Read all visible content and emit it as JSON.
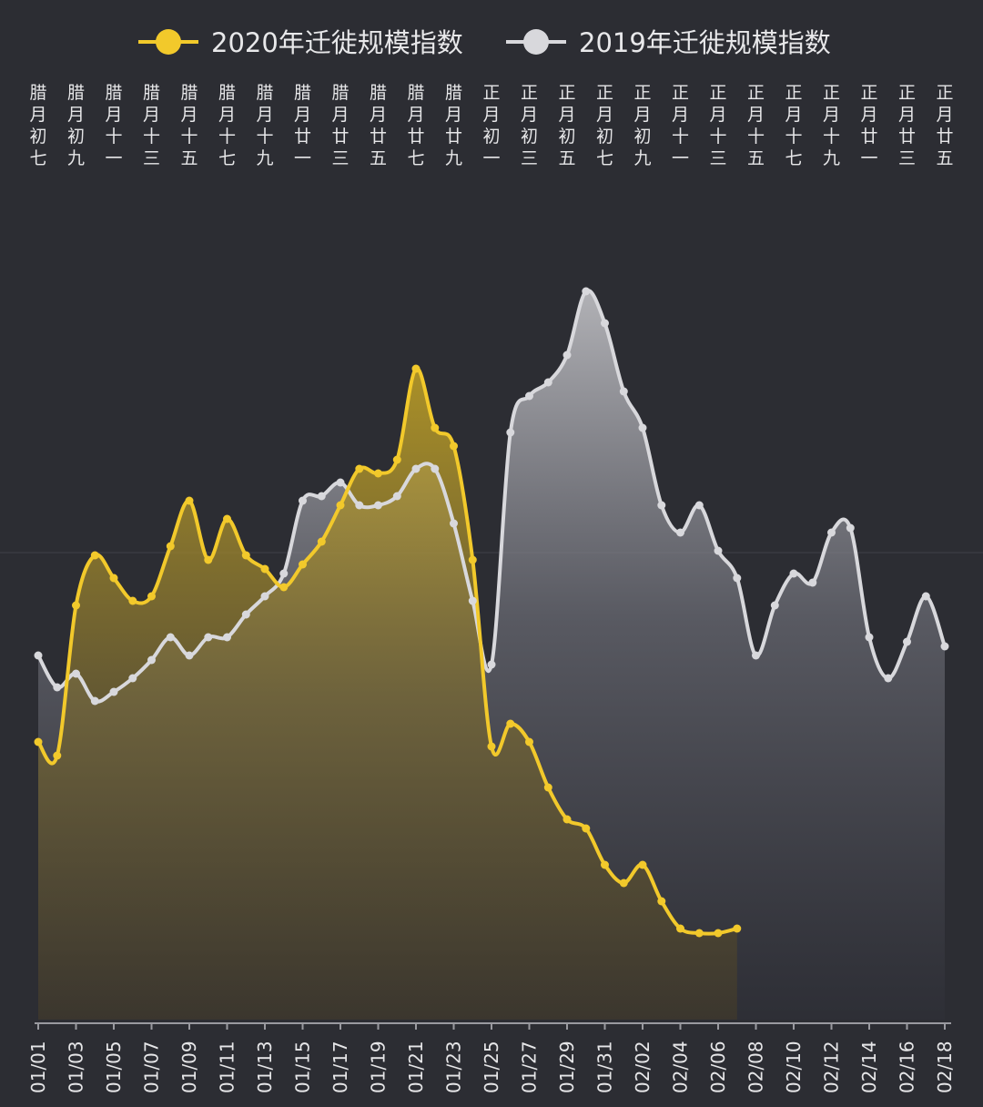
{
  "chart_data": {
    "type": "area",
    "title": "",
    "xlabel": "",
    "ylabel": "",
    "grid": false,
    "legend_position": "top-center",
    "x": [
      "01/01",
      "01/02",
      "01/03",
      "01/04",
      "01/05",
      "01/06",
      "01/07",
      "01/08",
      "01/09",
      "01/10",
      "01/11",
      "01/12",
      "01/13",
      "01/14",
      "01/15",
      "01/16",
      "01/17",
      "01/18",
      "01/19",
      "01/20",
      "01/21",
      "01/22",
      "01/23",
      "01/24",
      "01/25",
      "01/26",
      "01/27",
      "01/28",
      "01/29",
      "01/30",
      "01/31",
      "02/01",
      "02/02",
      "02/03",
      "02/04",
      "02/05",
      "02/06",
      "02/07",
      "02/08",
      "02/09",
      "02/10",
      "02/11",
      "02/12",
      "02/13",
      "02/14",
      "02/15",
      "02/16",
      "02/17",
      "02/18"
    ],
    "x_tick_labels": [
      "01/01",
      "01/03",
      "01/05",
      "01/07",
      "01/09",
      "01/11",
      "01/13",
      "01/15",
      "01/17",
      "01/19",
      "01/21",
      "01/23",
      "01/25",
      "01/27",
      "01/29",
      "01/31",
      "02/02",
      "02/04",
      "02/06",
      "02/08",
      "02/10",
      "02/12",
      "02/14",
      "02/16",
      "02/18"
    ],
    "lunar_labels": [
      "腊月初七",
      "腊月初九",
      "腊月十一",
      "腊月十三",
      "腊月十五",
      "腊月十七",
      "腊月十九",
      "腊月廿一",
      "腊月廿三",
      "腊月廿五",
      "腊月廿七",
      "腊月廿九",
      "正月初一",
      "正月初三",
      "正月初五",
      "正月初七",
      "正月初九",
      "正月十一",
      "正月十三",
      "正月十五",
      "正月十七",
      "正月十九",
      "正月廿一",
      "正月廿三",
      "正月廿五"
    ],
    "ylim": [
      0,
      850
    ],
    "series": [
      {
        "name": "2020年迁徙规模指数",
        "color": "#f2c92b",
        "values": [
          305,
          290,
          455,
          510,
          485,
          460,
          465,
          520,
          570,
          505,
          550,
          510,
          495,
          475,
          500,
          525,
          565,
          605,
          600,
          615,
          715,
          650,
          630,
          505,
          300,
          325,
          305,
          255,
          220,
          210,
          170,
          150,
          170,
          130,
          100,
          95,
          95,
          100,
          null,
          null,
          null,
          null,
          null,
          null,
          null,
          null,
          null,
          null,
          null
        ]
      },
      {
        "name": "2019年迁徙规模指数",
        "color": "#d8d8dc",
        "values": [
          400,
          365,
          380,
          350,
          360,
          375,
          395,
          420,
          400,
          420,
          420,
          445,
          465,
          490,
          570,
          575,
          590,
          565,
          565,
          575,
          605,
          605,
          545,
          460,
          390,
          645,
          685,
          700,
          730,
          800,
          765,
          690,
          650,
          565,
          535,
          565,
          515,
          485,
          400,
          455,
          490,
          480,
          535,
          540,
          420,
          375,
          415,
          465,
          410
        ]
      }
    ]
  }
}
